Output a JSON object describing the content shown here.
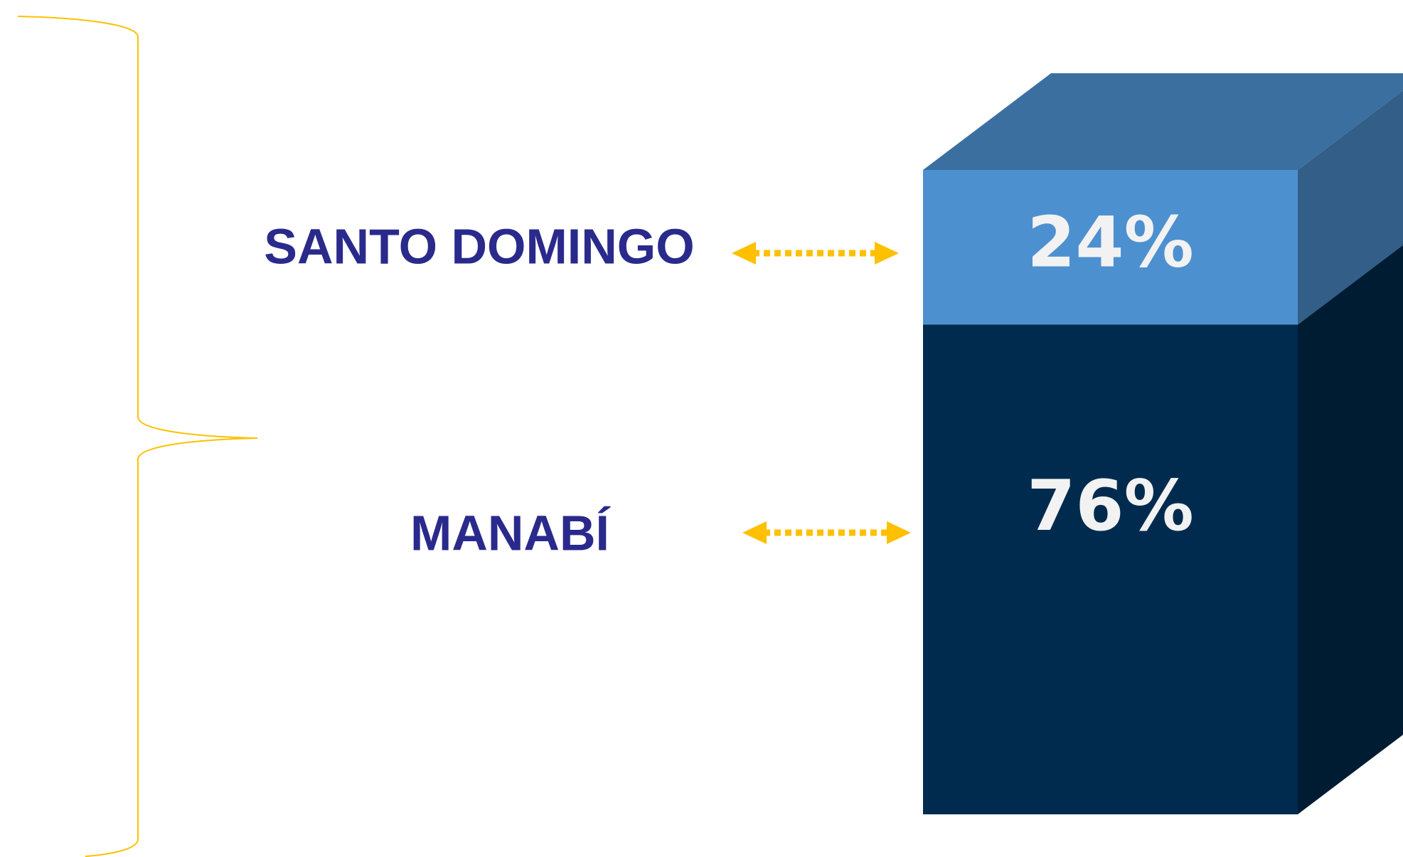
{
  "chart_data": {
    "type": "stacked-bar-3d",
    "series": [
      {
        "name": "SANTO DOMINGO",
        "color": "#4d90d0",
        "values": [
          24
        ],
        "value_labels": [
          "24%"
        ]
      },
      {
        "name": "MANABÍ",
        "color": "#002b4f",
        "values": [
          76
        ],
        "value_labels": [
          "76%"
        ]
      }
    ]
  }
}
